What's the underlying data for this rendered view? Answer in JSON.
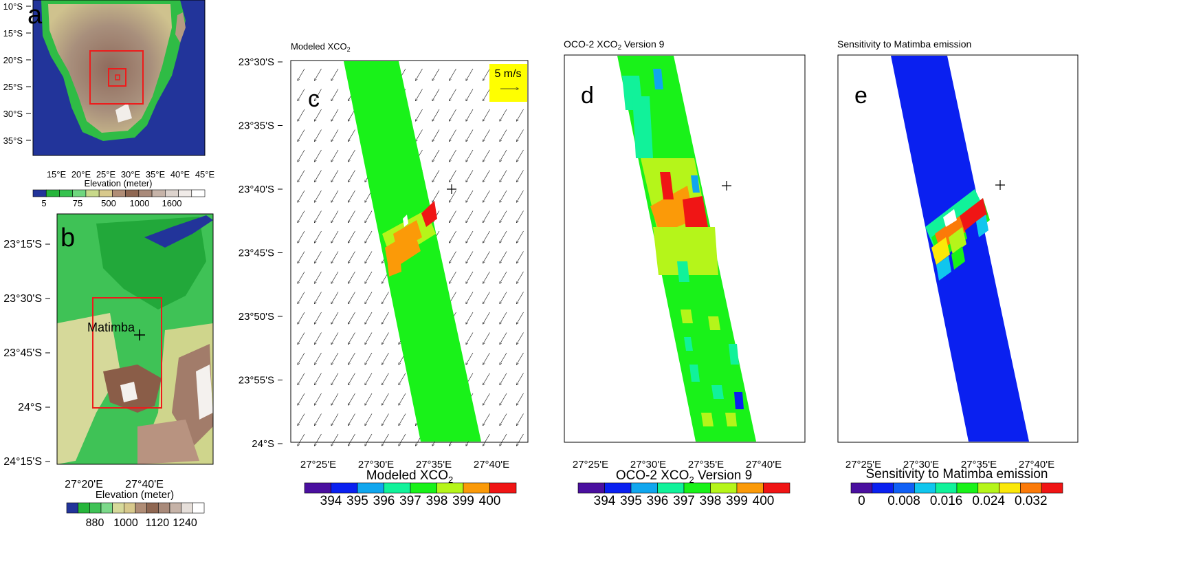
{
  "figure": {
    "panel_a": {
      "letter": "a",
      "lat_ticks": [
        "10°S",
        "15°S",
        "20°S",
        "25°S",
        "30°S",
        "35°S"
      ],
      "lon_ticks": [
        "15°E",
        "20°E",
        "25°E",
        "30°E",
        "35°E",
        "40°E",
        "45°E"
      ],
      "colorbar_title": "Elevation (meter)",
      "colorbar_labels": [
        "5",
        "75",
        "500",
        "1000",
        "1600"
      ],
      "colors": {
        "ocean": "#22349a",
        "low": "#26b53b",
        "mid": "#d6d59a",
        "high": "#9a6a55",
        "peak": "#ffffff",
        "box": "#ee1b1b"
      }
    },
    "panel_b": {
      "letter": "b",
      "place_label": "Matimba",
      "lat_ticks": [
        "23°15'S",
        "23°30'S",
        "23°45'S",
        "24°S",
        "24°15'S"
      ],
      "lon_ticks": [
        "27°20'E",
        "27°40'E"
      ],
      "colorbar_title": "Elevation (meter)",
      "colorbar_labels": [
        "880",
        "1000",
        "1120",
        "1240"
      ]
    },
    "lat_ticks_c": [
      "23°30'S",
      "23°35'S",
      "23°40'S",
      "23°45'S",
      "23°50'S",
      "23°55'S",
      "24°S"
    ],
    "lon_ticks_cde": [
      "27°25'E",
      "27°30'E",
      "27°35'E",
      "27°40'E"
    ]
  },
  "chart_data": [
    {
      "type": "heatmap",
      "panel": "c",
      "title": "Modeled XCO",
      "title_sub": "2",
      "colorbar_title": "Modeled XCO",
      "colorbar_sub": "2",
      "colorbar_levels": [
        394,
        395,
        396,
        397,
        398,
        399,
        400
      ],
      "colorbar_colors": [
        "#4a0f9f",
        "#0a20f0",
        "#10a6ee",
        "#11f29a",
        "#19f219",
        "#b5f51a",
        "#fb9a08",
        "#f01515"
      ],
      "wind_scale_label": "5 m/s",
      "wind_direction": "from northeast",
      "marker": {
        "lon": 27.6,
        "lat": -23.667,
        "symbol": "+"
      },
      "xlim": [
        "27°22'E",
        "27°44'E"
      ],
      "ylim": [
        "24°S",
        "23°30'S"
      ]
    },
    {
      "type": "heatmap",
      "panel": "d",
      "title": "OCO-2 XCO",
      "title_sub": "2",
      "title_suffix": " Version 9",
      "colorbar_title": "OCO-2 XCO",
      "colorbar_sub": "2",
      "colorbar_suffix": " Version 9",
      "colorbar_levels": [
        394,
        395,
        396,
        397,
        398,
        399,
        400
      ],
      "colorbar_colors": [
        "#4a0f9f",
        "#0a20f0",
        "#10a6ee",
        "#11f29a",
        "#19f219",
        "#b5f51a",
        "#fb9a08",
        "#f01515"
      ],
      "marker": {
        "lon": 27.6,
        "lat": -23.667,
        "symbol": "+"
      }
    },
    {
      "type": "heatmap",
      "panel": "e",
      "title": "Sensitivity to Matimba emission",
      "colorbar_title": "Sensitivity to Matimba emission",
      "colorbar_labels": [
        "0",
        "0.008",
        "0.016",
        "0.024",
        "0.032"
      ],
      "colorbar_colors": [
        "#4a0f9f",
        "#0a20f0",
        "#1060f5",
        "#10c6ee",
        "#11f29a",
        "#19f219",
        "#b5f51a",
        "#fbe808",
        "#fb7a08",
        "#f01515"
      ],
      "marker": {
        "lon": 27.6,
        "lat": -23.667,
        "symbol": "+"
      }
    }
  ]
}
